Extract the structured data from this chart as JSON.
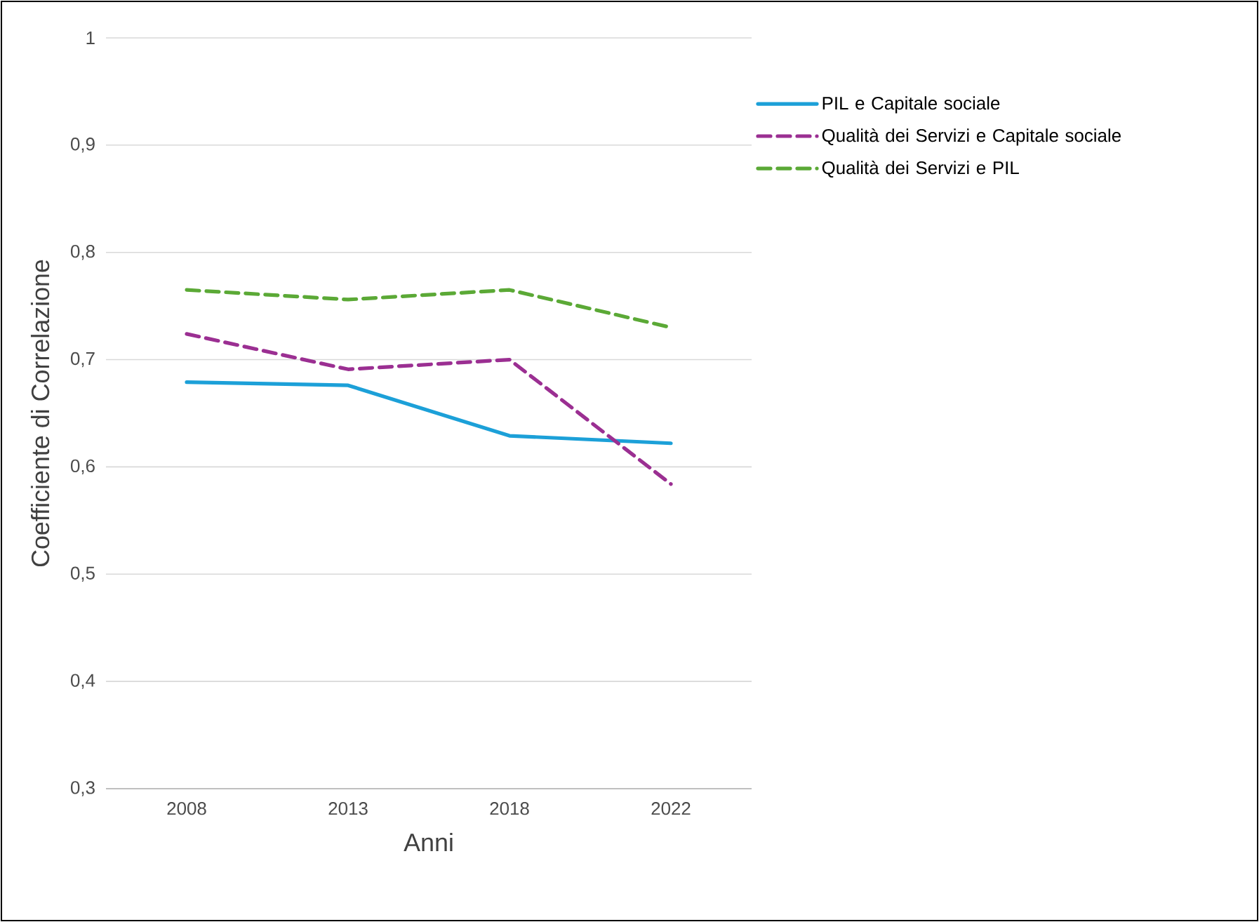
{
  "chart_data": {
    "type": "line",
    "xlabel": "Anni",
    "ylabel": "Coefficiente di Correlazione",
    "categories": [
      "2008",
      "2013",
      "2018",
      "2022"
    ],
    "series": [
      {
        "name": "PIL e Capitale sociale",
        "color": "#1ca0d8",
        "values": [
          0.679,
          0.676,
          0.629,
          0.622
        ],
        "line_style": "solid"
      },
      {
        "name": "Qualità dei Servizi e Capitale sociale",
        "color": "#9b2f92",
        "values": [
          0.724,
          0.691,
          0.7,
          0.584
        ],
        "line_style": "dashed"
      },
      {
        "name": "Qualità dei Servizi e PIL",
        "color": "#5ba936",
        "values": [
          0.765,
          0.756,
          0.765,
          0.73
        ],
        "line_style": "dashed"
      }
    ],
    "ylim": [
      0.3,
      1
    ],
    "yticks": [
      {
        "value": 0.3,
        "label": "0,3"
      },
      {
        "value": 0.4,
        "label": "0,4"
      },
      {
        "value": 0.5,
        "label": "0,5"
      },
      {
        "value": 0.6,
        "label": "0,6"
      },
      {
        "value": 0.7,
        "label": "0,7"
      },
      {
        "value": 0.8,
        "label": "0,8"
      },
      {
        "value": 0.9,
        "label": "0,9"
      },
      1
    ],
    "grid": "y",
    "legend": "right",
    "marker": "none"
  }
}
